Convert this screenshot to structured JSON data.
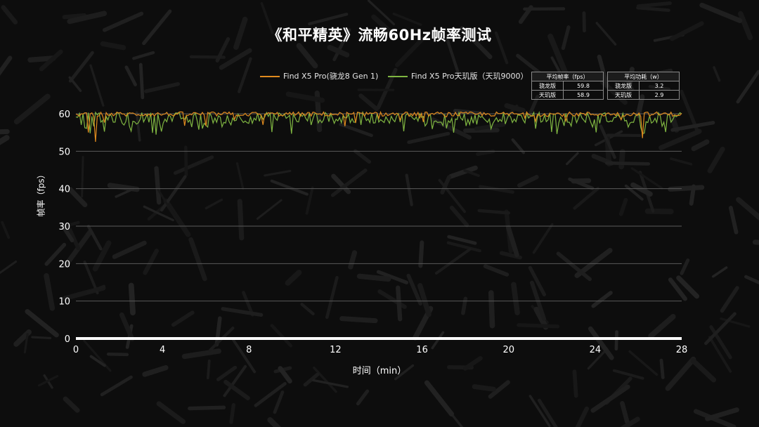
{
  "title": "《和平精英》流畅60Hz帧率测试",
  "legend": [
    {
      "label": "Find X5 Pro(骁龙8 Gen 1)",
      "color": "#e08a1e"
    },
    {
      "label": "Find X5 Pro天玑版（天玑9000）",
      "color": "#7fb541"
    }
  ],
  "fps_table": {
    "header": "平均帧率（fps）",
    "rows": [
      {
        "name": "骁龙版",
        "value": "59.8"
      },
      {
        "name": "天玑版",
        "value": "58.9"
      }
    ]
  },
  "power_table": {
    "header": "平均功耗（w）",
    "rows": [
      {
        "name": "骁龙版",
        "value": "3.2"
      },
      {
        "name": "天玑版",
        "value": "2.9"
      }
    ]
  },
  "chart_data": {
    "type": "line",
    "xlabel": "时间（min）",
    "ylabel": "帧率（fps）",
    "xlim": [
      0,
      28
    ],
    "ylim": [
      0,
      60
    ],
    "xticks": [
      0,
      4,
      8,
      12,
      16,
      20,
      24,
      28
    ],
    "yticks": [
      0,
      10,
      20,
      30,
      40,
      50,
      60
    ],
    "grid": true,
    "series": [
      {
        "name": "Find X5 Pro(骁龙8 Gen 1)",
        "color": "#e08a1e",
        "summary": {
          "typical": 60,
          "notable_dips": [
            {
              "x": 0.6,
              "y": 55
            },
            {
              "x": 0.9,
              "y": 52.5
            },
            {
              "x": 26.2,
              "y": 53.5
            }
          ]
        }
      },
      {
        "name": "Find X5 Pro天玑版（天玑9000）",
        "color": "#7fb541",
        "summary": {
          "typical": 59,
          "range": [
            55,
            61
          ]
        }
      }
    ]
  }
}
